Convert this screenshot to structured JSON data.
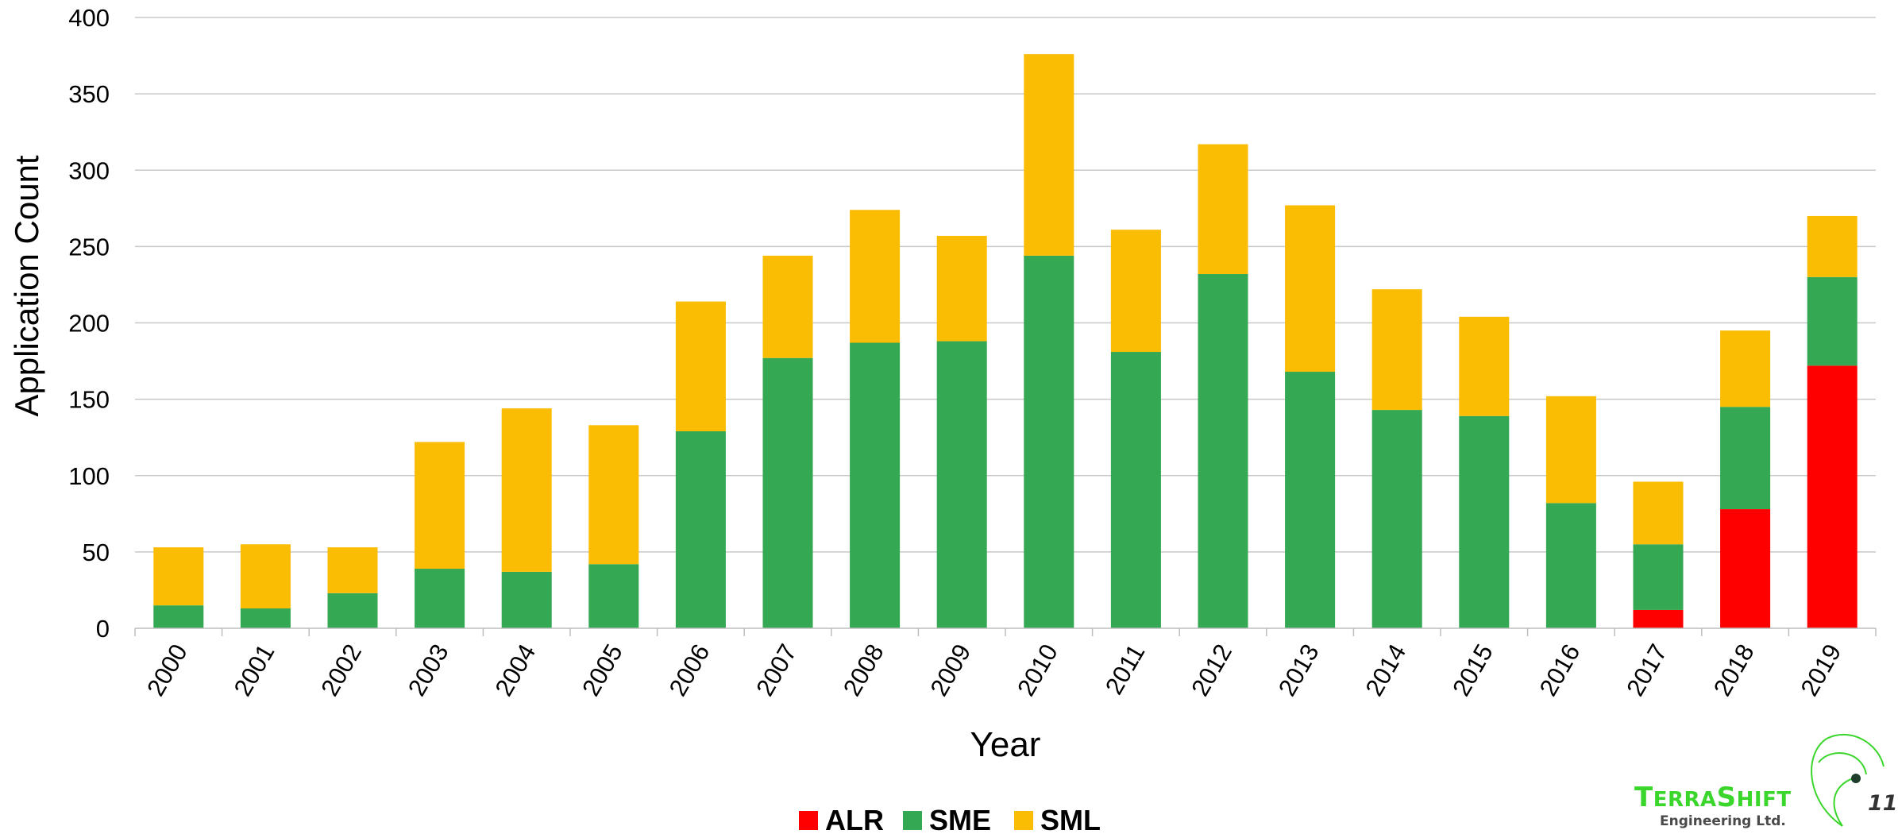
{
  "chart_data": {
    "type": "bar",
    "stacked": true,
    "categories": [
      "2000",
      "2001",
      "2002",
      "2003",
      "2004",
      "2005",
      "2006",
      "2007",
      "2008",
      "2009",
      "2010",
      "2011",
      "2012",
      "2013",
      "2014",
      "2015",
      "2016",
      "2017",
      "2018",
      "2019"
    ],
    "series": [
      {
        "name": "ALR",
        "color": "#ff0000",
        "values": [
          0,
          0,
          0,
          0,
          0,
          0,
          0,
          0,
          0,
          0,
          0,
          0,
          0,
          0,
          0,
          0,
          0,
          12,
          78,
          172
        ]
      },
      {
        "name": "SME",
        "color": "#34a853",
        "values": [
          15,
          13,
          23,
          39,
          37,
          42,
          129,
          177,
          187,
          188,
          244,
          181,
          232,
          168,
          143,
          139,
          82,
          43,
          67,
          58
        ]
      },
      {
        "name": "SML",
        "color": "#fbbc04",
        "values": [
          38,
          42,
          30,
          83,
          107,
          91,
          85,
          67,
          87,
          69,
          132,
          80,
          85,
          109,
          79,
          65,
          70,
          41,
          50,
          40
        ]
      }
    ],
    "xlabel": "Year",
    "ylabel": "Application Count",
    "ylim": [
      0,
      400
    ],
    "yticks": [
      "0",
      "50",
      "100",
      "150",
      "200",
      "250",
      "300",
      "350",
      "400"
    ],
    "grid": true,
    "legend_position": "bottom-center"
  },
  "logo": {
    "line1_initial_a": "T",
    "line1_rest_a": "ERRA",
    "line1_initial_b": "S",
    "line1_rest_b": "HIFT",
    "line2": "Engineering Ltd.",
    "mark": "circular-swirl-icon"
  },
  "page_number": "11"
}
